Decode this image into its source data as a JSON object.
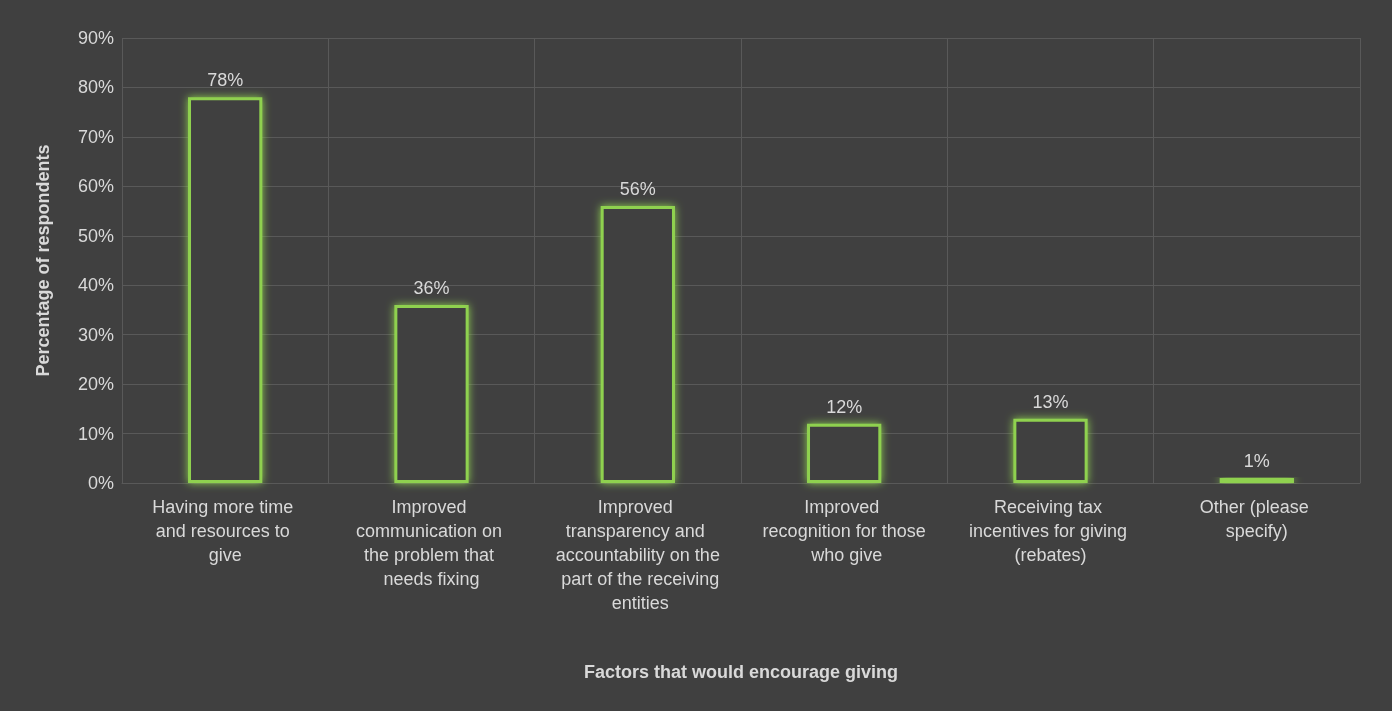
{
  "chart_data": {
    "type": "bar",
    "xlabel": "Factors that would encourage giving",
    "ylabel": "Percentage of respondents",
    "categories": [
      "Having more time and resources to give",
      "Improved communication on the problem that needs fixing",
      "Improved transparency and accountability on the part of the receiving entities",
      "Improved recognition for those who give",
      "Receiving tax incentives for giving (rebates)",
      "Other (please specify)"
    ],
    "values": [
      78,
      36,
      56,
      12,
      13,
      1
    ],
    "value_labels": [
      "78%",
      "36%",
      "56%",
      "12%",
      "13%",
      "1%"
    ],
    "color": "#8fd14f",
    "ylim": [
      0,
      90
    ],
    "yticks": [
      {
        "value": 0,
        "label": "0%"
      },
      {
        "value": 10,
        "label": "10%"
      },
      {
        "value": 20,
        "label": "20%"
      },
      {
        "value": 30,
        "label": "30%"
      },
      {
        "value": 40,
        "label": "40%"
      },
      {
        "value": 50,
        "label": "50%"
      },
      {
        "value": 60,
        "label": "60%"
      },
      {
        "value": 70,
        "label": "70%"
      },
      {
        "value": 80,
        "label": "80%"
      },
      {
        "value": 90,
        "label": "90%"
      }
    ],
    "grid": true
  }
}
